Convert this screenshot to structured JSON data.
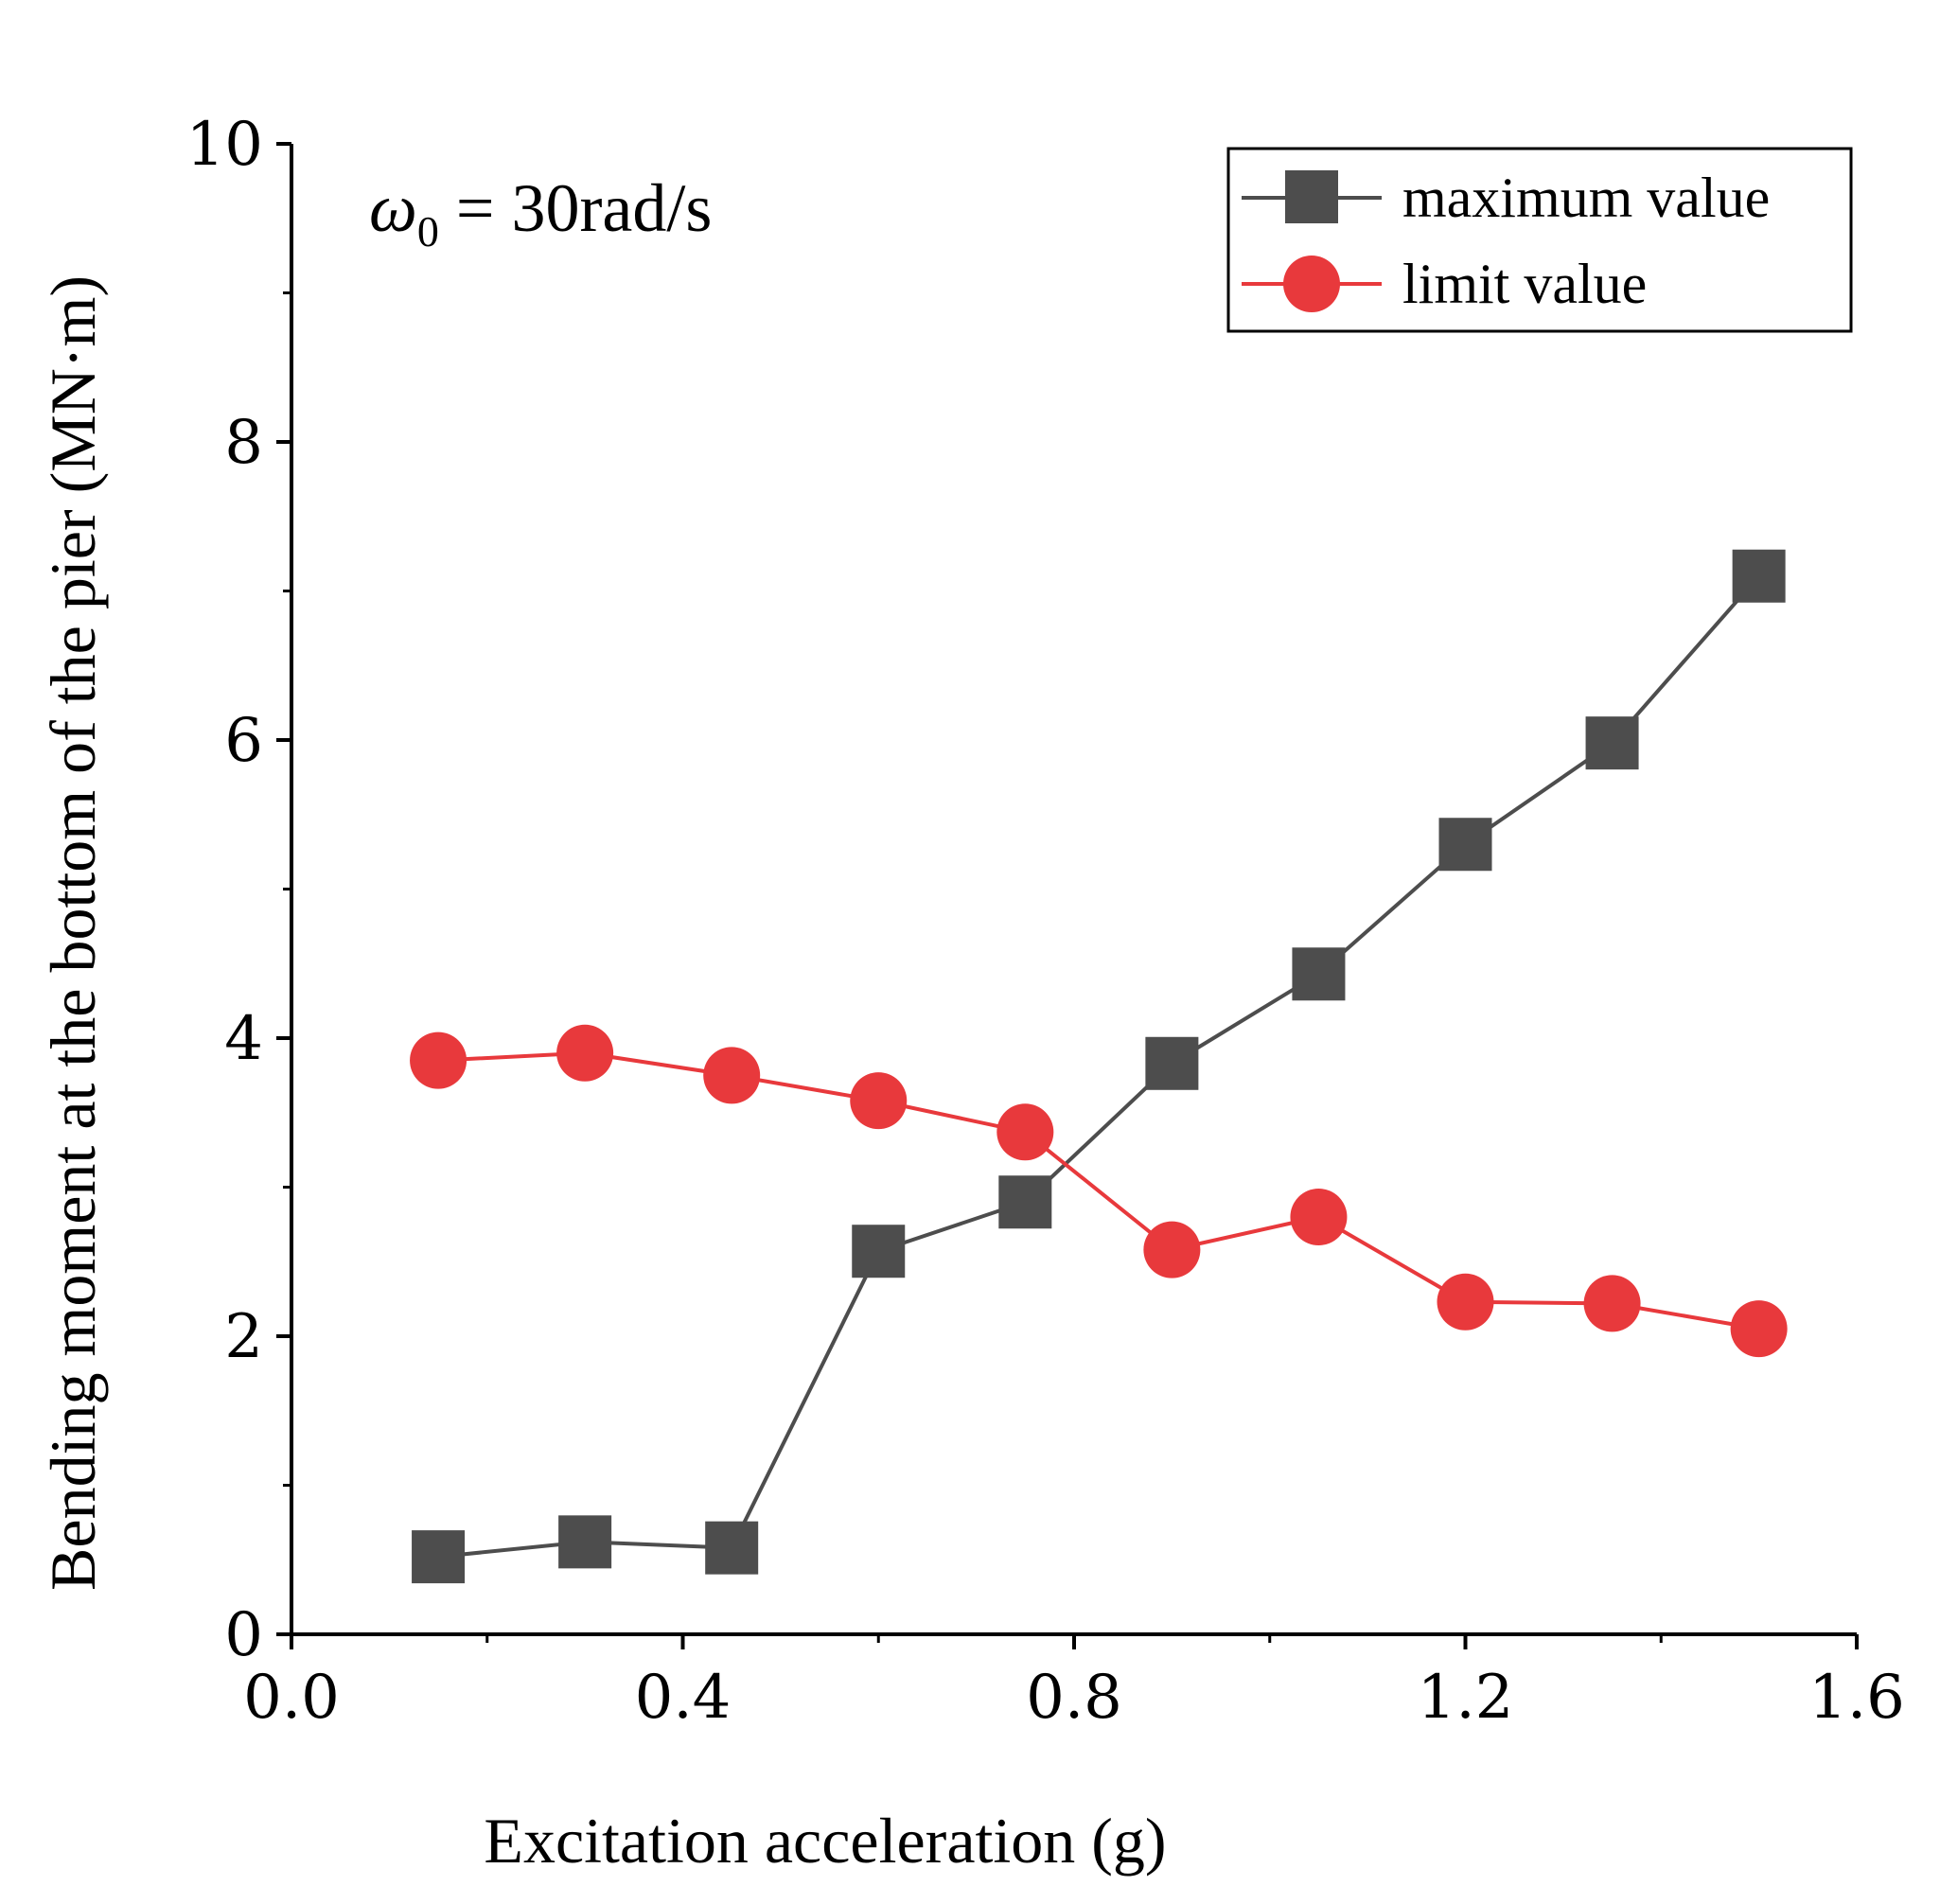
{
  "chart_data": {
    "type": "line",
    "title": "",
    "xlabel": "Excitation acceleration (g)",
    "ylabel": "Bending moment at the bottom of the pier (MN·m)",
    "xlim": [
      0.0,
      1.6
    ],
    "ylim": [
      0,
      10
    ],
    "xticks": [
      "0.0",
      "0.4",
      "0.8",
      "1.2",
      "1.6"
    ],
    "yticks": [
      "0",
      "2",
      "4",
      "6",
      "8",
      "10"
    ],
    "grid": false,
    "legend_position": "top-right",
    "annotation": {
      "symbol": "ω",
      "subscript": "0",
      "rest": " = 30rad/s"
    },
    "x": [
      0.15,
      0.3,
      0.45,
      0.6,
      0.75,
      0.9,
      1.05,
      1.2,
      1.35,
      1.5
    ],
    "series": [
      {
        "name": "maximum value",
        "marker": "square",
        "color": "#4d4d4d",
        "values": [
          0.52,
          0.62,
          0.58,
          2.57,
          2.9,
          3.83,
          4.43,
          5.3,
          5.98,
          7.1
        ]
      },
      {
        "name": "limit value",
        "marker": "circle",
        "color": "#e8393c",
        "values": [
          3.85,
          3.9,
          3.75,
          3.58,
          3.37,
          2.58,
          2.8,
          2.23,
          2.22,
          2.05
        ]
      }
    ]
  }
}
